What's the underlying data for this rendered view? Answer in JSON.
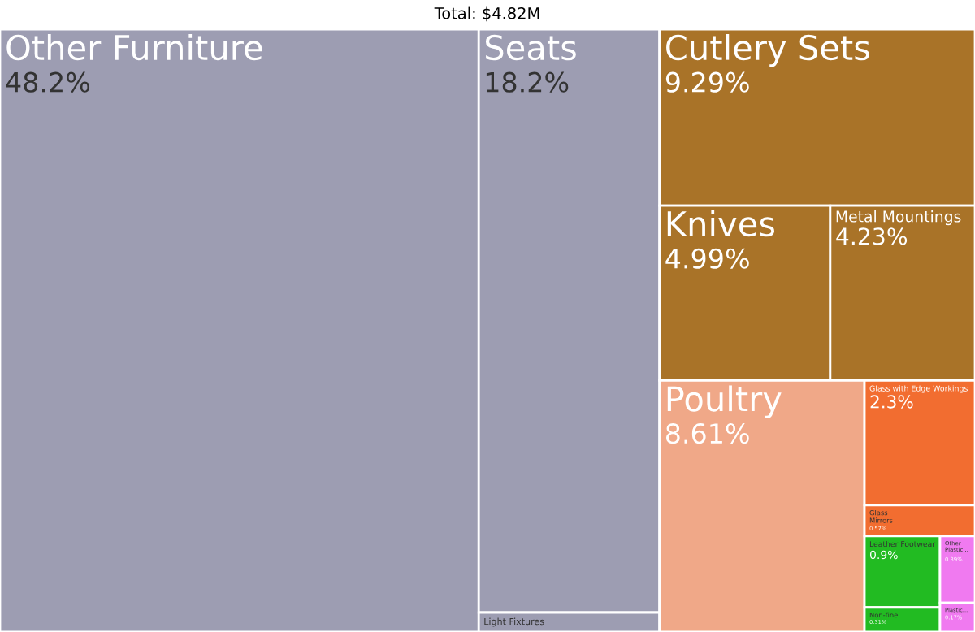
{
  "chart_data": {
    "type": "other",
    "title": "Total: $4.82M",
    "categories": [
      "Other Furniture",
      "Seats",
      "Light Fixtures",
      "Cutlery Sets",
      "Knives",
      "Metal Mountings",
      "Poultry",
      "Glass with Edge Workings",
      "Glass Mirrors",
      "Leather Footwear",
      "Non-fine...",
      "Other Plastic...",
      "Plastic..."
    ],
    "values": [
      48.2,
      18.2,
      null,
      9.29,
      4.99,
      4.23,
      8.61,
      2.3,
      0.57,
      0.9,
      0.31,
      0.39,
      0.17
    ],
    "value_labels": [
      "48.2%",
      "18.2%",
      null,
      "9.29%",
      "4.99%",
      "4.23%",
      "8.61%",
      "2.3%",
      "0.57%",
      "0.9%",
      "0.31%",
      "0.39%",
      "0.17%"
    ],
    "colors": [
      "#9d9db2",
      "#9d9db2",
      "#9d9db2",
      "#a97328",
      "#a97328",
      "#a97328",
      "#f0a888",
      "#f26d30",
      "#f26d30",
      "#22bb22",
      "#22bb22",
      "#f07af0",
      "#f07af0"
    ]
  }
}
